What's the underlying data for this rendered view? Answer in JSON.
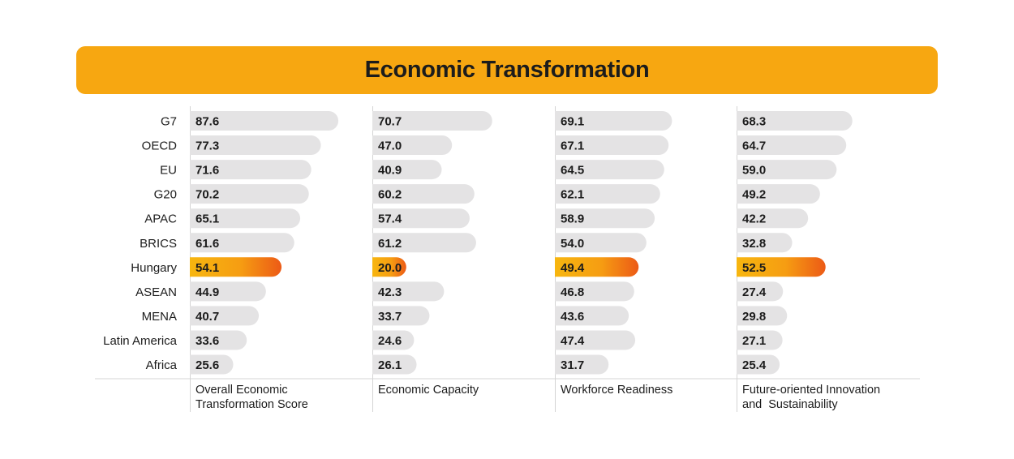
{
  "banner": {
    "title": "Economic Transformation"
  },
  "colors": {
    "banner": "#f7a711",
    "bar": "#e4e3e4",
    "highlight_start": "#f7b60f",
    "highlight_end": "#ec5a16",
    "text": "#1c1c1c",
    "axis": "#d4d4d4"
  },
  "chart_data": {
    "type": "bar",
    "orientation": "horizontal",
    "title": "Economic Transformation",
    "categories": [
      "G7",
      "OECD",
      "EU",
      "G20",
      "APAC",
      "BRICS",
      "Hungary",
      "ASEAN",
      "MENA",
      "Latin America",
      "Africa"
    ],
    "highlight": "Hungary",
    "series": [
      {
        "name": "Overall Economic\nTransformation Score",
        "label_lines": [
          "Overall Economic",
          "Transformation Score"
        ],
        "values": [
          "87.6",
          "77.3",
          "71.6",
          "70.2",
          "65.1",
          "61.6",
          "54.1",
          "44.9",
          "40.7",
          "33.6",
          "25.6"
        ]
      },
      {
        "name": "Economic Capacity",
        "label_lines": [
          "Economic Capacity"
        ],
        "values": [
          "70.7",
          "47.0",
          "40.9",
          "60.2",
          "57.4",
          "61.2",
          "20.0",
          "42.3",
          "33.7",
          "24.6",
          "26.1"
        ]
      },
      {
        "name": "Workforce Readiness",
        "label_lines": [
          "Workforce Readiness"
        ],
        "values": [
          "69.1",
          "67.1",
          "64.5",
          "62.1",
          "58.9",
          "54.0",
          "49.4",
          "46.8",
          "43.6",
          "47.4",
          "31.7"
        ]
      },
      {
        "name": "Future-oriented Innovation\nand  Sustainability",
        "label_lines": [
          "Future-oriented Innovation",
          "and  Sustainability"
        ],
        "values": [
          "68.3",
          "64.7",
          "59.0",
          "49.2",
          "42.2",
          "32.8",
          "52.5",
          "27.4",
          "29.8",
          "27.1",
          "25.4"
        ]
      }
    ],
    "xlim": [
      0,
      100
    ]
  }
}
